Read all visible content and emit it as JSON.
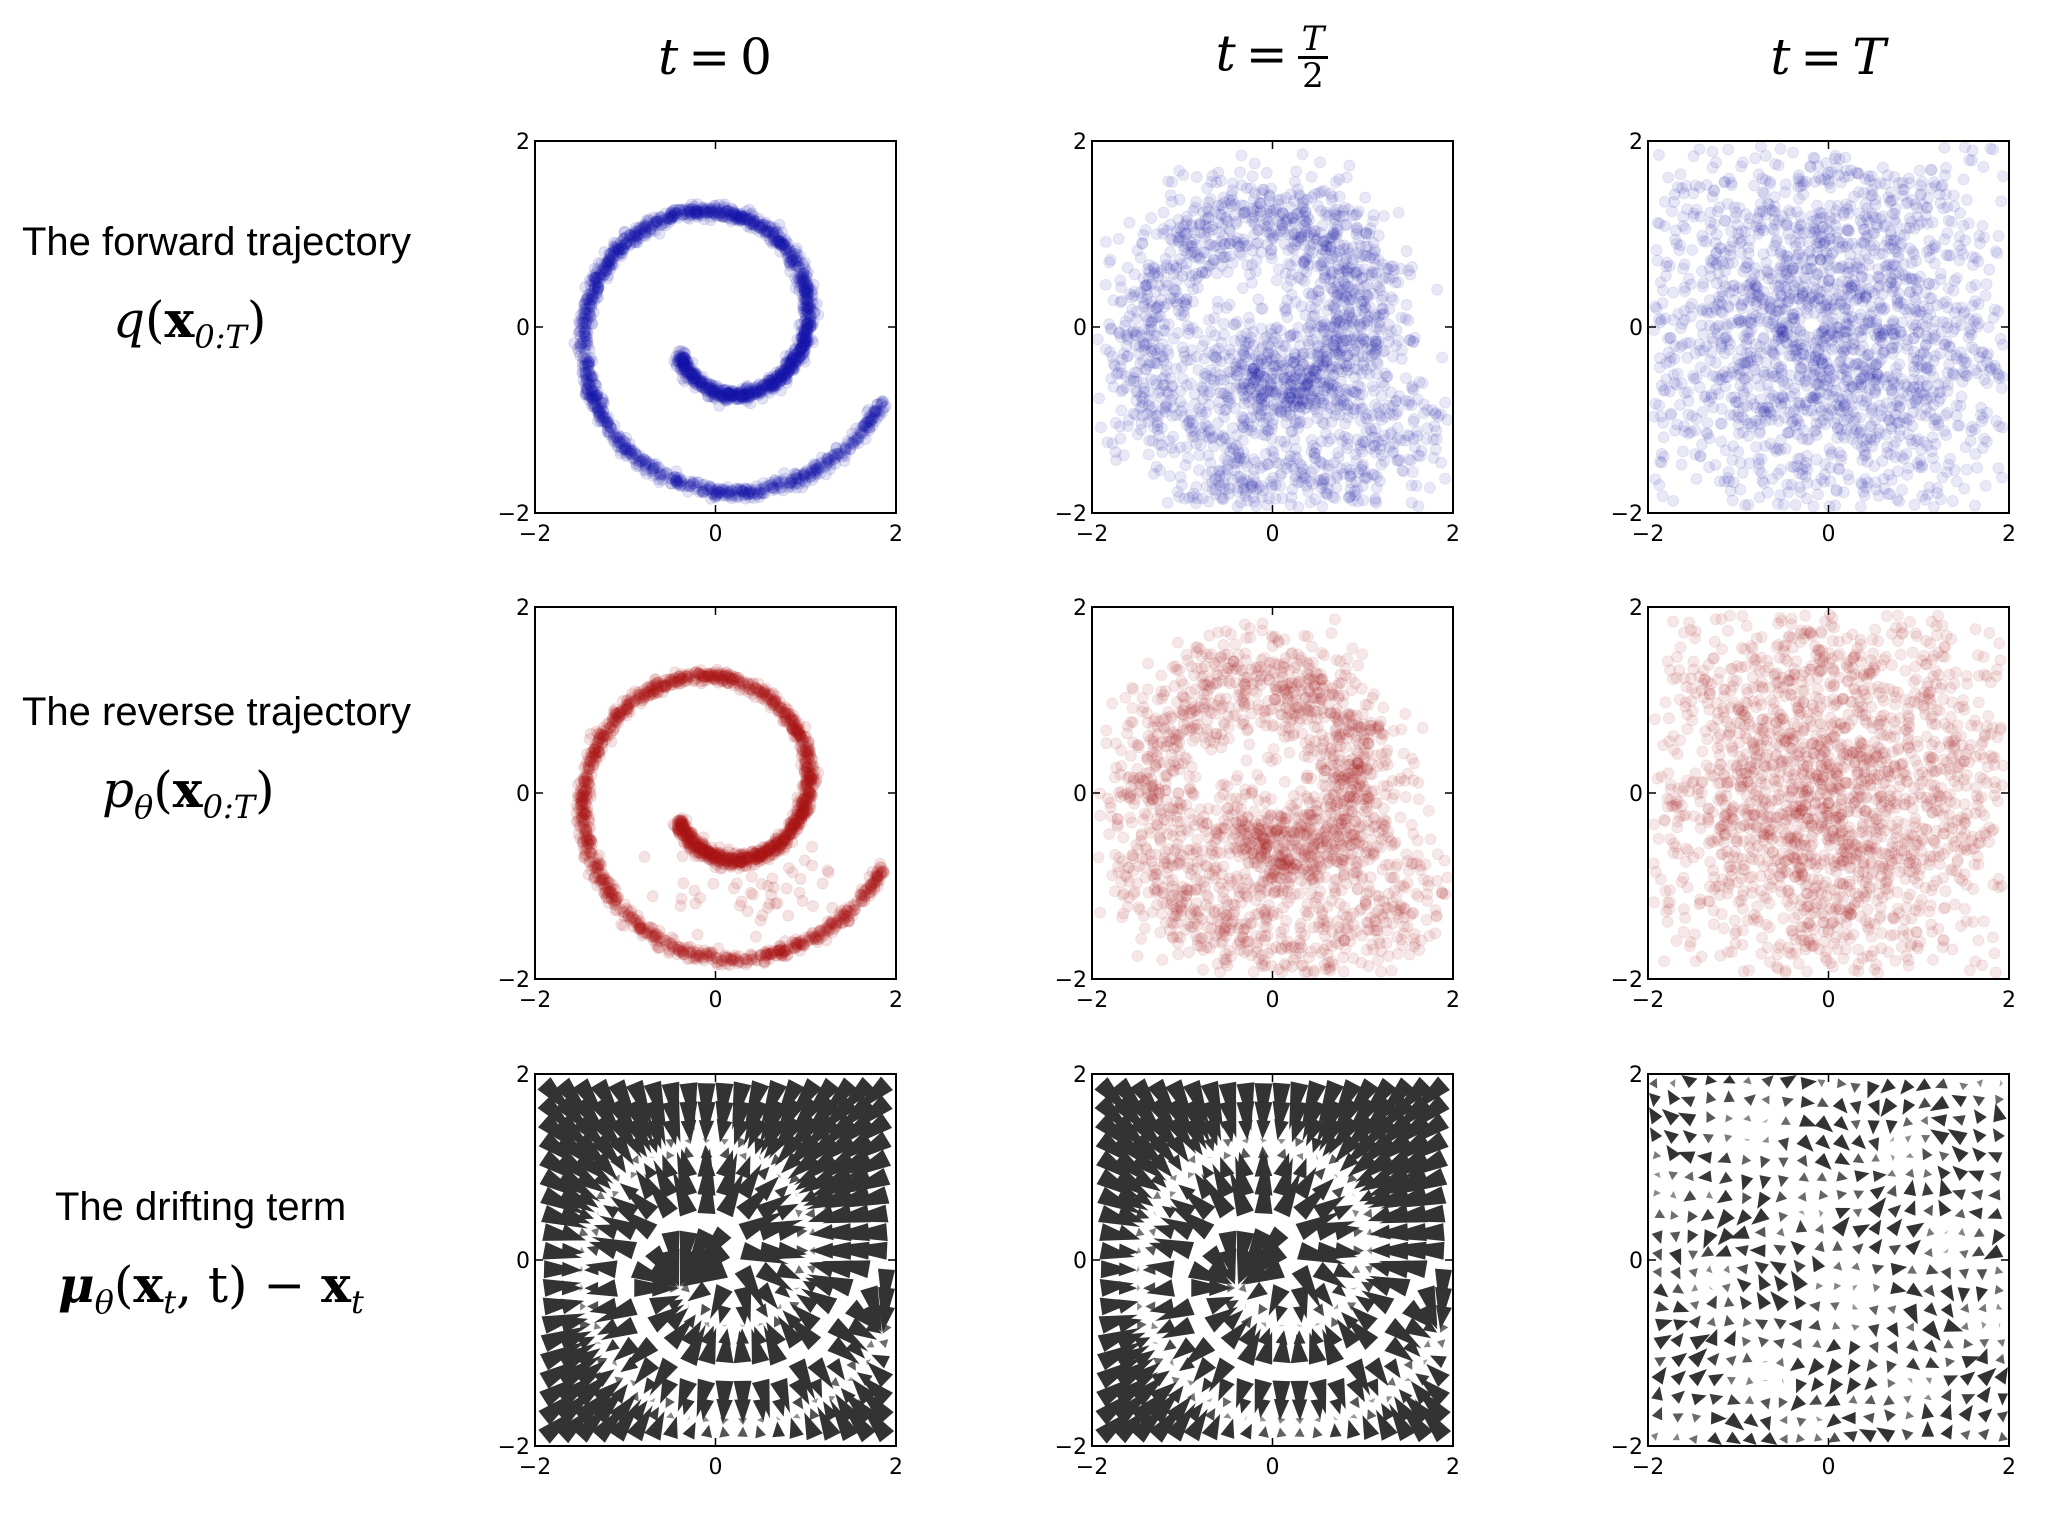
{
  "column_titles": [
    {
      "lhs": "t",
      "eq": "=",
      "rhs": "0"
    },
    {
      "lhs": "t",
      "eq": "=",
      "num": "T",
      "den": "2"
    },
    {
      "lhs": "t",
      "eq": "=",
      "rhs": "T"
    }
  ],
  "row_labels": [
    {
      "text": "The forward trajectory",
      "math": {
        "f": "q",
        "open": "(",
        "x": "x",
        "sub": "0:T",
        "close": ")"
      }
    },
    {
      "text": "The reverse trajectory",
      "math": {
        "f": "p",
        "fsub": "θ",
        "open": "(",
        "x": "x",
        "sub": "0:T",
        "close": ")"
      }
    },
    {
      "text": "The drifting term",
      "math": {
        "f": "μ",
        "fsub": "θ",
        "open": "(",
        "x": "x",
        "sub": "t",
        "mid": ", t) − ",
        "x2": "x",
        "sub2": "t"
      }
    }
  ],
  "chart_data": [
    {
      "row": 0,
      "col": 0,
      "type": "scatter",
      "series_color": "#1a1aaa",
      "alpha": 0.12,
      "distribution": "spiral",
      "xlim": [
        -2,
        2
      ],
      "ylim": [
        -2,
        2
      ],
      "xticks": [
        "−2",
        "0",
        "2"
      ],
      "yticks": [
        "−2",
        "0",
        "2"
      ],
      "grid": false
    },
    {
      "row": 0,
      "col": 1,
      "type": "scatter",
      "series_color": "#1a1aaa",
      "alpha": 0.1,
      "distribution": "noisy spiral",
      "xlim": [
        -2,
        2
      ],
      "ylim": [
        -2,
        2
      ],
      "xticks": [
        "−2",
        "0",
        "2"
      ],
      "yticks": [
        "−2",
        "0",
        "2"
      ],
      "grid": false
    },
    {
      "row": 0,
      "col": 2,
      "type": "scatter",
      "series_color": "#1a1aaa",
      "alpha": 0.1,
      "distribution": "gaussian",
      "xlim": [
        -2,
        2
      ],
      "ylim": [
        -2,
        2
      ],
      "xticks": [
        "−2",
        "0",
        "2"
      ],
      "yticks": [
        "−2",
        "0",
        "2"
      ],
      "grid": false
    },
    {
      "row": 1,
      "col": 0,
      "type": "scatter",
      "series_color": "#aa1a1a",
      "alpha": 0.12,
      "distribution": "spiral",
      "xlim": [
        -2,
        2
      ],
      "ylim": [
        -2,
        2
      ],
      "xticks": [
        "−2",
        "0",
        "2"
      ],
      "yticks": [
        "−2",
        "0",
        "2"
      ],
      "grid": false
    },
    {
      "row": 1,
      "col": 1,
      "type": "scatter",
      "series_color": "#aa1a1a",
      "alpha": 0.1,
      "distribution": "noisy spiral",
      "xlim": [
        -2,
        2
      ],
      "ylim": [
        -2,
        2
      ],
      "xticks": [
        "−2",
        "0",
        "2"
      ],
      "yticks": [
        "−2",
        "0",
        "2"
      ],
      "grid": false
    },
    {
      "row": 1,
      "col": 2,
      "type": "scatter",
      "series_color": "#aa1a1a",
      "alpha": 0.1,
      "distribution": "gaussian",
      "xlim": [
        -2,
        2
      ],
      "ylim": [
        -2,
        2
      ],
      "xticks": [
        "−2",
        "0",
        "2"
      ],
      "yticks": [
        "−2",
        "0",
        "2"
      ],
      "grid": false
    },
    {
      "row": 2,
      "col": 0,
      "type": "quiver",
      "series_color": "#333333",
      "xlim": [
        -2,
        2
      ],
      "ylim": [
        -2,
        2
      ],
      "xticks": [
        "−2",
        "0",
        "2"
      ],
      "yticks": [
        "−2",
        "0",
        "2"
      ],
      "grid": false
    },
    {
      "row": 2,
      "col": 1,
      "type": "quiver",
      "series_color": "#333333",
      "xlim": [
        -2,
        2
      ],
      "ylim": [
        -2,
        2
      ],
      "xticks": [
        "−2",
        "0",
        "2"
      ],
      "yticks": [
        "−2",
        "0",
        "2"
      ],
      "grid": false
    },
    {
      "row": 2,
      "col": 2,
      "type": "quiver",
      "series_color": "#333333",
      "xlim": [
        -2,
        2
      ],
      "ylim": [
        -2,
        2
      ],
      "xticks": [
        "−2",
        "0",
        "2"
      ],
      "yticks": [
        "−2",
        "0",
        "2"
      ],
      "grid": false
    }
  ]
}
